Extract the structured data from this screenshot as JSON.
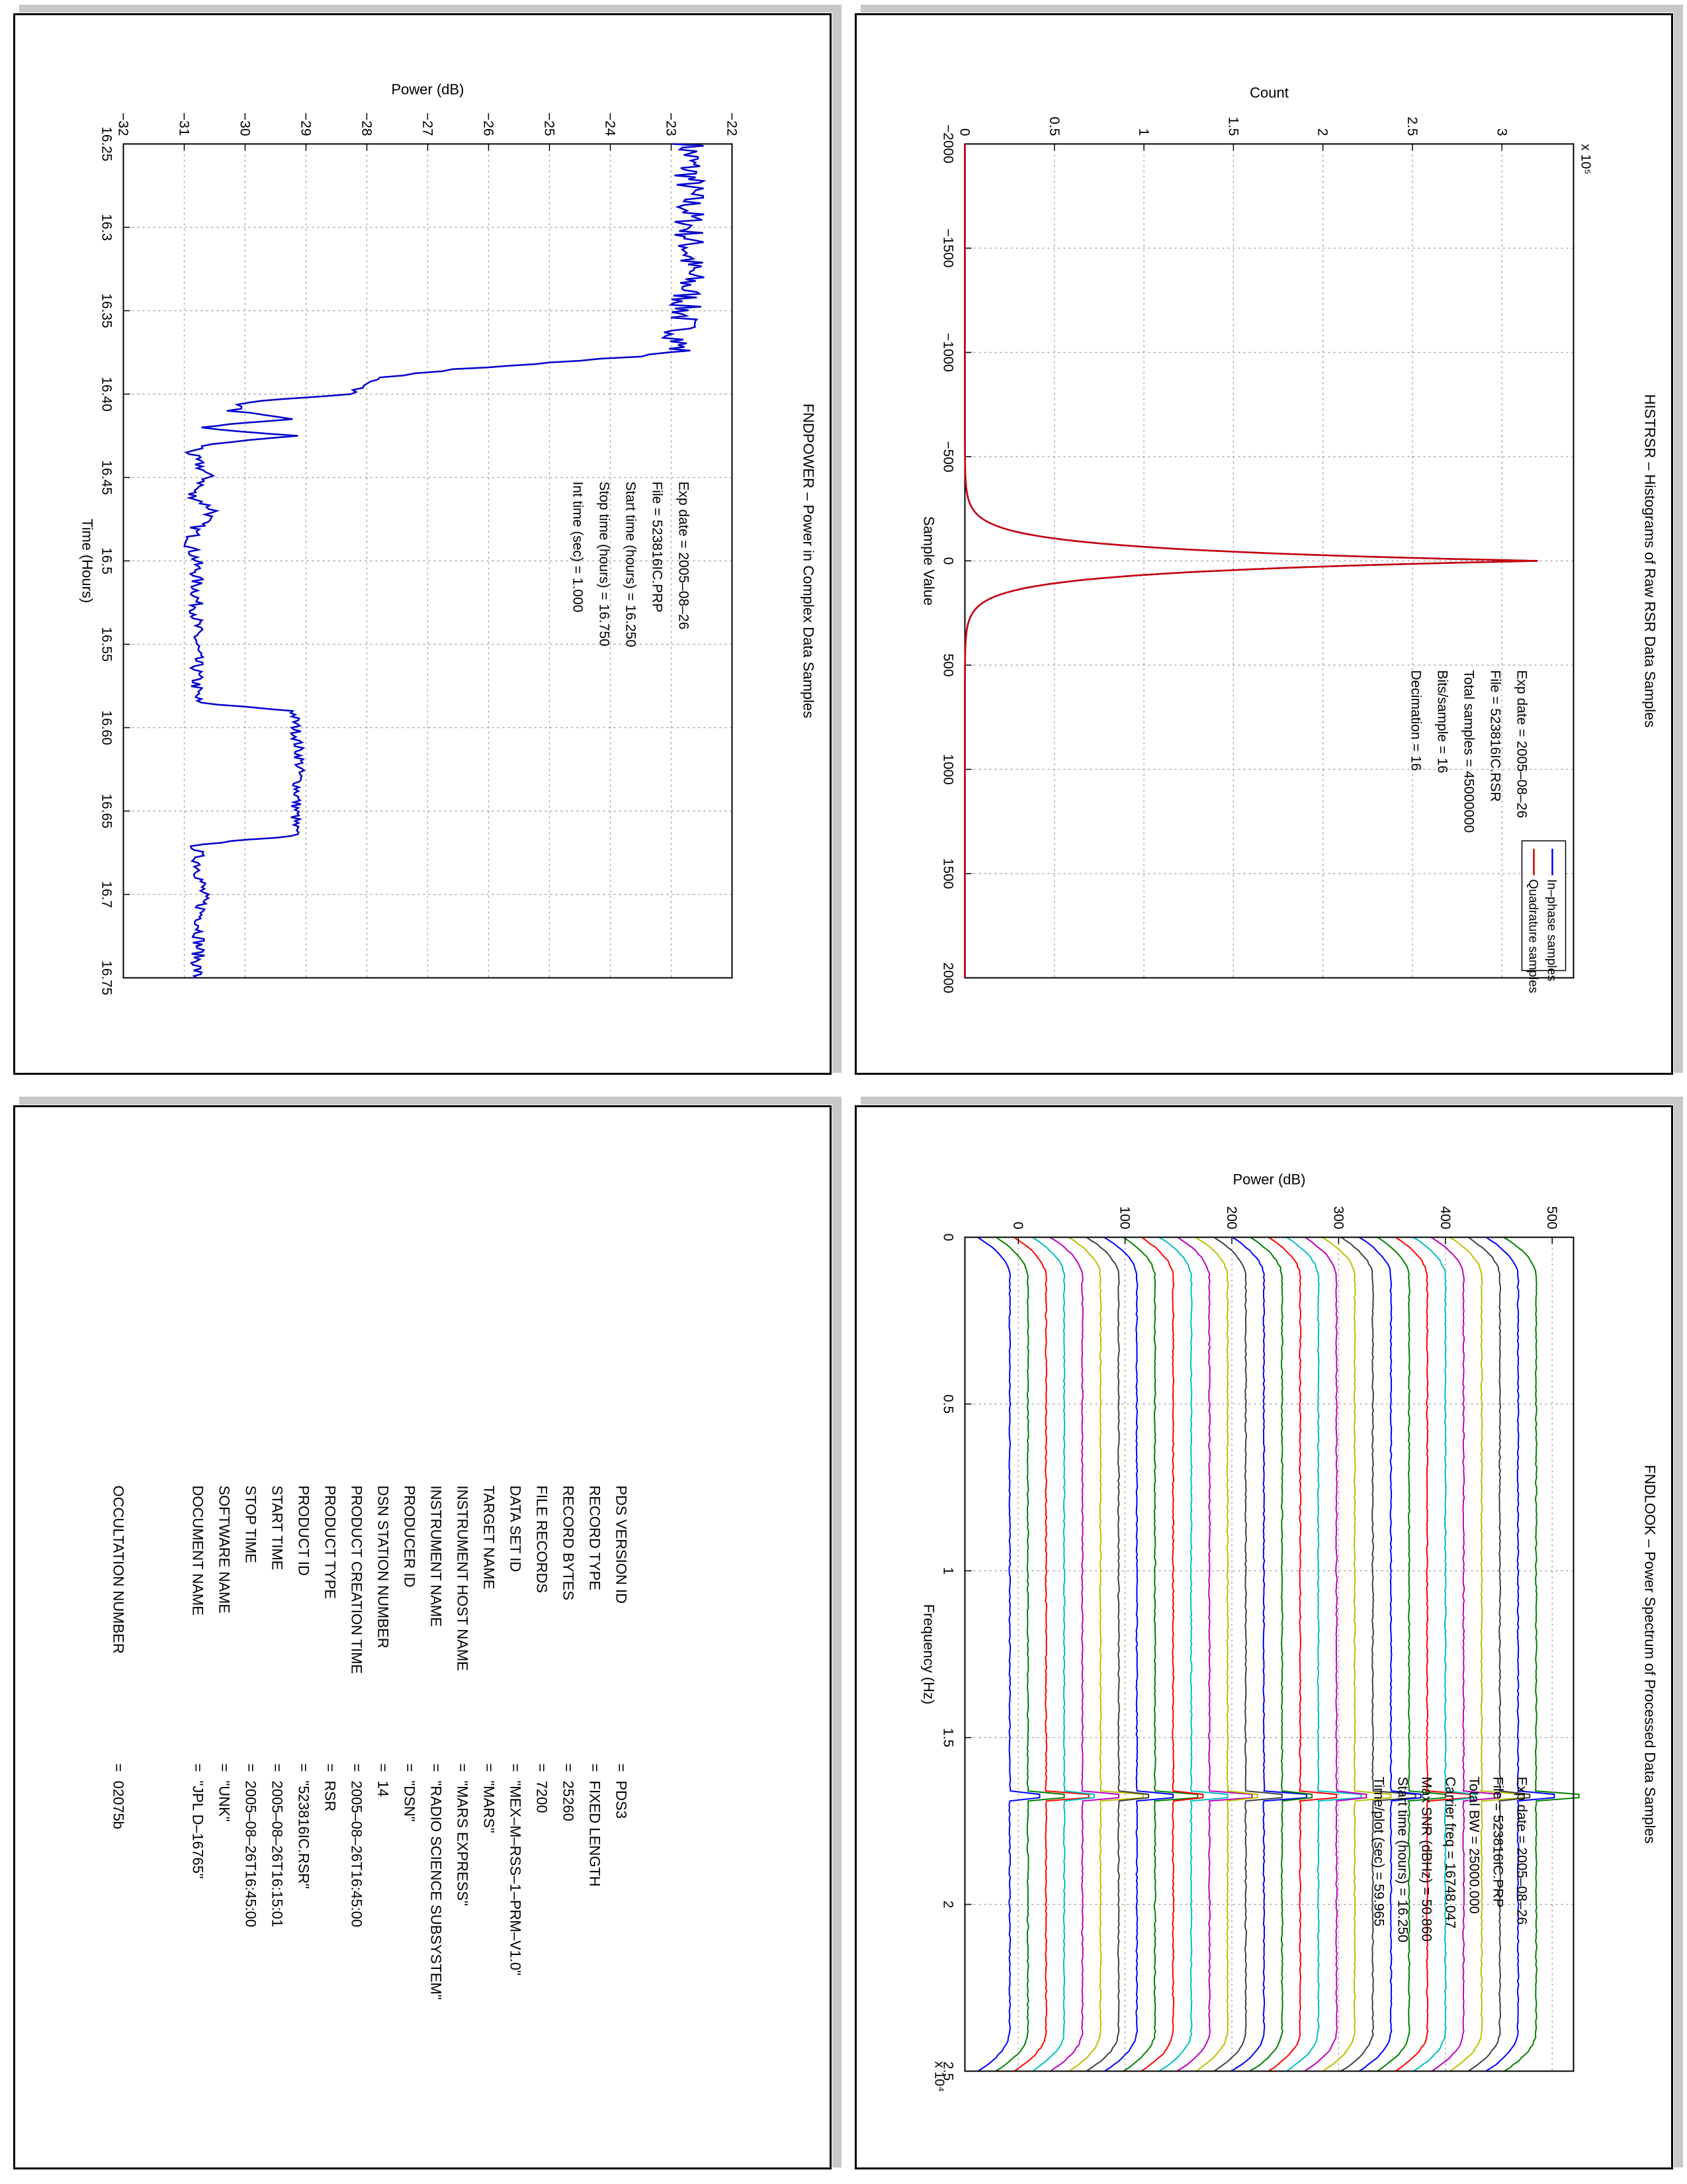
{
  "panels": {
    "fndpower": {
      "title": "FNDPOWER – Power in Complex Data Samples",
      "xlabel": "Time (Hours)",
      "ylabel": "Power (dB)",
      "info": [
        {
          "label": "Exp date",
          "value": "2005–08–26"
        },
        {
          "label": "File",
          "value": "523816IC.PRP"
        },
        {
          "label": "Start time (hours)",
          "value": "16.250"
        },
        {
          "label": "Stop time (hours)",
          "value": "16.750"
        },
        {
          "label": "Int time (sec)",
          "value": "1.000"
        }
      ]
    },
    "histrsr": {
      "title": "HISTRSR – Histograms of Raw RSR Data Samples",
      "xlabel": "Sample Value",
      "ylabel": "Count",
      "multiplier": "x 10⁵",
      "info": [
        {
          "label": "Exp date",
          "value": "2005–08–26"
        },
        {
          "label": "File",
          "value": "523816IC.RSR"
        },
        {
          "label": "Total samples",
          "value": "45000000"
        },
        {
          "label": "Bits/sample",
          "value": "16"
        },
        {
          "label": "Decimation",
          "value": "16"
        }
      ]
    },
    "fndlook": {
      "title": "FNDLOOK – Power Spectrum of Processed Data Samples",
      "xlabel": "Frequency (Hz)",
      "ylabel": "Power (dB)",
      "multiplier": "x 10⁴",
      "info": [
        {
          "label": "Exp date",
          "value": "2005–08–26"
        },
        {
          "label": "File",
          "value": "523816IC.PRP"
        },
        {
          "label": "Total BW",
          "value": "25000.000"
        },
        {
          "label": "Carrier freq",
          "value": "16748.047"
        },
        {
          "label": "Max SNR (dBHz)",
          "value": "50.860"
        },
        {
          "label": "Start time (hours)",
          "value": "16.250"
        },
        {
          "label": "Time/plot (sec)",
          "value": "59.965"
        }
      ]
    },
    "pds": {
      "rows": [
        {
          "key": "PDS VERSION ID",
          "value": "PDS3"
        },
        {
          "key": "RECORD TYPE",
          "value": "FIXED LENGTH"
        },
        {
          "key": "RECORD BYTES",
          "value": "25260"
        },
        {
          "key": "FILE RECORDS",
          "value": "7200"
        },
        {
          "key": "DATA SET ID",
          "value": "\"MEX–M–RSS–1–PRM–V1.0\""
        },
        {
          "key": "TARGET NAME",
          "value": "\"MARS\""
        },
        {
          "key": "INSTRUMENT HOST NAME",
          "value": "\"MARS EXPRESS\""
        },
        {
          "key": "INSTRUMENT NAME",
          "value": "\"RADIO SCIENCE SUBSYSTEM\""
        },
        {
          "key": "PRODUCER ID",
          "value": "\"DSN\""
        },
        {
          "key": "DSN STATION NUMBER",
          "value": "14"
        },
        {
          "key": "PRODUCT CREATION TIME",
          "value": "2005–08–26T16:45:00"
        },
        {
          "key": "PRODUCT TYPE",
          "value": "RSR"
        },
        {
          "key": "PRODUCT ID",
          "value": "\"523816IC.RSR\""
        },
        {
          "key": "START TIME",
          "value": "2005–08–26T16:15:01"
        },
        {
          "key": "STOP TIME",
          "value": "2005–08–26T16:45:00"
        },
        {
          "key": "SOFTWARE NAME",
          "value": "\"UNK\""
        },
        {
          "key": "DOCUMENT NAME",
          "value": "\"JPL D–16765\""
        },
        {
          "key": "OCCULTATION NUMBER",
          "value": "02075b"
        }
      ]
    }
  },
  "chart_data": [
    {
      "type": "line",
      "title": "FNDPOWER – Power in Complex Data Samples",
      "xlabel": "Time (Hours)",
      "ylabel": "Power (dB)",
      "xlim": [
        16.25,
        16.75
      ],
      "ylim": [
        -32,
        -22
      ],
      "xticks": [
        16.25,
        16.3,
        16.35,
        16.4,
        16.45,
        16.5,
        16.55,
        16.6,
        16.65,
        16.7,
        16.75
      ],
      "yticks": [
        -32,
        -31,
        -30,
        -29,
        -28,
        -27,
        -26,
        -25,
        -24,
        -23,
        -22
      ],
      "grid": true,
      "color": "#0000cc",
      "series": [
        {
          "x": [
            16.25,
            16.29,
            16.33,
            16.375,
            16.38,
            16.385,
            16.39,
            16.395,
            16.4,
            16.405,
            16.41,
            16.415,
            16.42,
            16.425,
            16.43,
            16.435,
            16.44,
            16.45,
            16.46,
            16.47,
            16.48,
            16.49,
            16.5,
            16.55,
            16.585,
            16.59,
            16.62,
            16.665,
            16.67,
            16.7,
            16.75
          ],
          "y": [
            -22.7,
            -22.7,
            -22.7,
            -22.9,
            -24.5,
            -26.5,
            -27.8,
            -28.0,
            -28.3,
            -30.0,
            -30.2,
            -29.3,
            -30.8,
            -29.2,
            -30.6,
            -30.9,
            -30.8,
            -30.6,
            -30.9,
            -30.5,
            -30.8,
            -30.9,
            -30.8,
            -30.8,
            -30.8,
            -29.2,
            -29.1,
            -29.2,
            -30.8,
            -30.7,
            -30.8
          ]
        }
      ]
    },
    {
      "type": "line",
      "title": "HISTRSR – Histograms of Raw RSR Data Samples",
      "xlabel": "Sample Value",
      "ylabel": "Count",
      "multiplier": "x 10⁵",
      "xlim": [
        -2000,
        2000
      ],
      "ylim": [
        0,
        3.4
      ],
      "xticks": [
        -2000,
        -1500,
        -1000,
        -500,
        0,
        500,
        1000,
        1500,
        2000
      ],
      "yticks": [
        0,
        0.5,
        1,
        1.5,
        2,
        2.5,
        3
      ],
      "grid": true,
      "legend": "top-right",
      "series": [
        {
          "name": "In–phase samples",
          "color": "#0000ff",
          "x": [
            -2000,
            -300,
            -250,
            -200,
            -150,
            -100,
            -50,
            0,
            50,
            100,
            150,
            200,
            250,
            300,
            2000
          ],
          "y": [
            0,
            0.02,
            0.08,
            0.2,
            0.45,
            1.0,
            2.2,
            3.2,
            2.2,
            1.0,
            0.45,
            0.2,
            0.08,
            0.02,
            0
          ]
        },
        {
          "name": "Quadrature samples",
          "color": "#cc0000",
          "x": [
            -2000,
            -300,
            -250,
            -200,
            -150,
            -100,
            -50,
            0,
            50,
            100,
            150,
            200,
            250,
            300,
            2000
          ],
          "y": [
            0,
            0.02,
            0.08,
            0.2,
            0.45,
            1.0,
            2.2,
            3.2,
            2.2,
            1.0,
            0.45,
            0.2,
            0.08,
            0.02,
            0
          ]
        }
      ]
    },
    {
      "type": "line",
      "title": "FNDLOOK – Power Spectrum of Processed Data Samples",
      "xlabel": "Frequency (Hz)",
      "ylabel": "Power (dB)",
      "multiplier": "x 10⁴",
      "xlim": [
        0,
        2.5
      ],
      "ylim": [
        -50,
        520
      ],
      "xticks": [
        0,
        0.5,
        1,
        1.5,
        2,
        2.5
      ],
      "yticks": [
        0,
        100,
        200,
        300,
        400,
        500
      ],
      "grid": true,
      "carrier": 1.6748,
      "series_count": 30,
      "series_spacing": 17,
      "series_base": -8,
      "series_colors": [
        "#0000ff",
        "#008000",
        "#ff0000",
        "#00bfbf",
        "#bf00bf",
        "#bfbf00",
        "#404040"
      ]
    }
  ]
}
